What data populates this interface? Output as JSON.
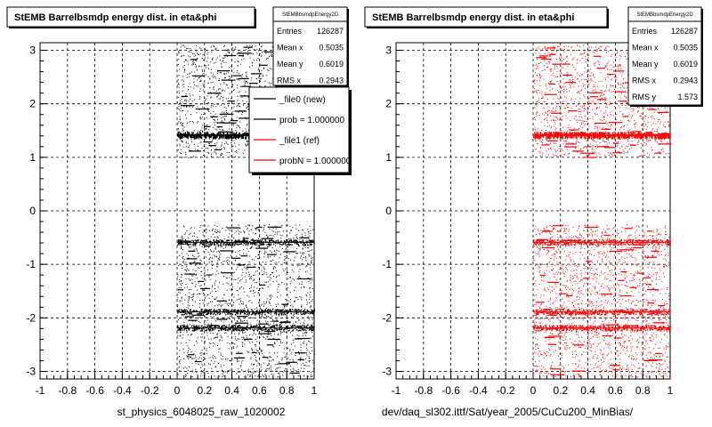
{
  "chart_data": [
    {
      "type": "scatter",
      "title": "StEMB Barrelbsmdp energy dist. in eta&phi",
      "xlabel": "st_physics_6048025_raw_1020002",
      "ylabel": "",
      "xlim": [
        -1,
        1
      ],
      "ylim": [
        -3.1416,
        3.1416
      ],
      "x_ticks": [
        "-1",
        "-0.8",
        "-0.6",
        "-0.4",
        "-0.2",
        "0",
        "0.2",
        "0.4",
        "0.6",
        "0.8",
        "1"
      ],
      "y_ticks": [
        "-3",
        "-2",
        "-1",
        "0",
        "1",
        "2",
        "3"
      ],
      "grid": true,
      "marker_color": "#000000",
      "stats": {
        "name": "StEMBbsmdpEnergy2D",
        "rows": [
          {
            "label": "Entries",
            "value": "126287"
          },
          {
            "label": "Mean x",
            "value": "0.5035"
          },
          {
            "label": "Mean y",
            "value": "0.6019"
          },
          {
            "label": "RMS x",
            "value": "0.2943"
          }
        ]
      },
      "legend": {
        "placement": "top-right",
        "entries": [
          {
            "label": "_file0 (new)",
            "color": "#000000"
          },
          {
            "label": "prob = 1.000000",
            "color": "#000000"
          },
          {
            "label": "_file1 (ref)",
            "color": "#ff0000"
          },
          {
            "label": "probN = 1.000000",
            "color": "#ff0000"
          }
        ]
      },
      "density": {
        "x_range": [
          0,
          1
        ],
        "y_bands": [
          [
            -3.1,
            -0.25
          ],
          [
            1.0,
            3.1
          ]
        ],
        "empty_band": [
          -0.25,
          1.0
        ],
        "dense_lines": [
          1.39,
          -1.9,
          -2.2,
          -0.6
        ]
      }
    },
    {
      "type": "scatter",
      "title": "StEMB Barrelbsmdp energy dist. in eta&phi",
      "xlabel": "dev/daq_sl302.ittf/Sat/year_2005/CuCu200_MinBias/",
      "ylabel": "",
      "xlim": [
        -1,
        1
      ],
      "ylim": [
        -3.1416,
        3.1416
      ],
      "x_ticks": [
        "-1",
        "-0.8",
        "-0.6",
        "-0.4",
        "-0.2",
        "0",
        "0.2",
        "0.4",
        "0.6",
        "0.8",
        "1"
      ],
      "y_ticks": [
        "-3",
        "-2",
        "-1",
        "0",
        "1",
        "2",
        "3"
      ],
      "grid": true,
      "marker_color": "#ff0000",
      "stats": {
        "name": "StEMBbsmdpEnergy2D",
        "rows": [
          {
            "label": "Entries",
            "value": "126287"
          },
          {
            "label": "Mean x",
            "value": "0.5035"
          },
          {
            "label": "Mean y",
            "value": "0.6019"
          },
          {
            "label": "RMS x",
            "value": "0.2943"
          },
          {
            "label": "RMS y",
            "value": "1.573"
          }
        ]
      },
      "density": {
        "x_range": [
          0,
          1
        ],
        "y_bands": [
          [
            -3.1,
            -0.25
          ],
          [
            1.0,
            3.1
          ]
        ],
        "empty_band": [
          -0.25,
          1.0
        ],
        "dense_lines": [
          1.39,
          -1.9,
          -2.2,
          -0.6
        ]
      }
    }
  ]
}
